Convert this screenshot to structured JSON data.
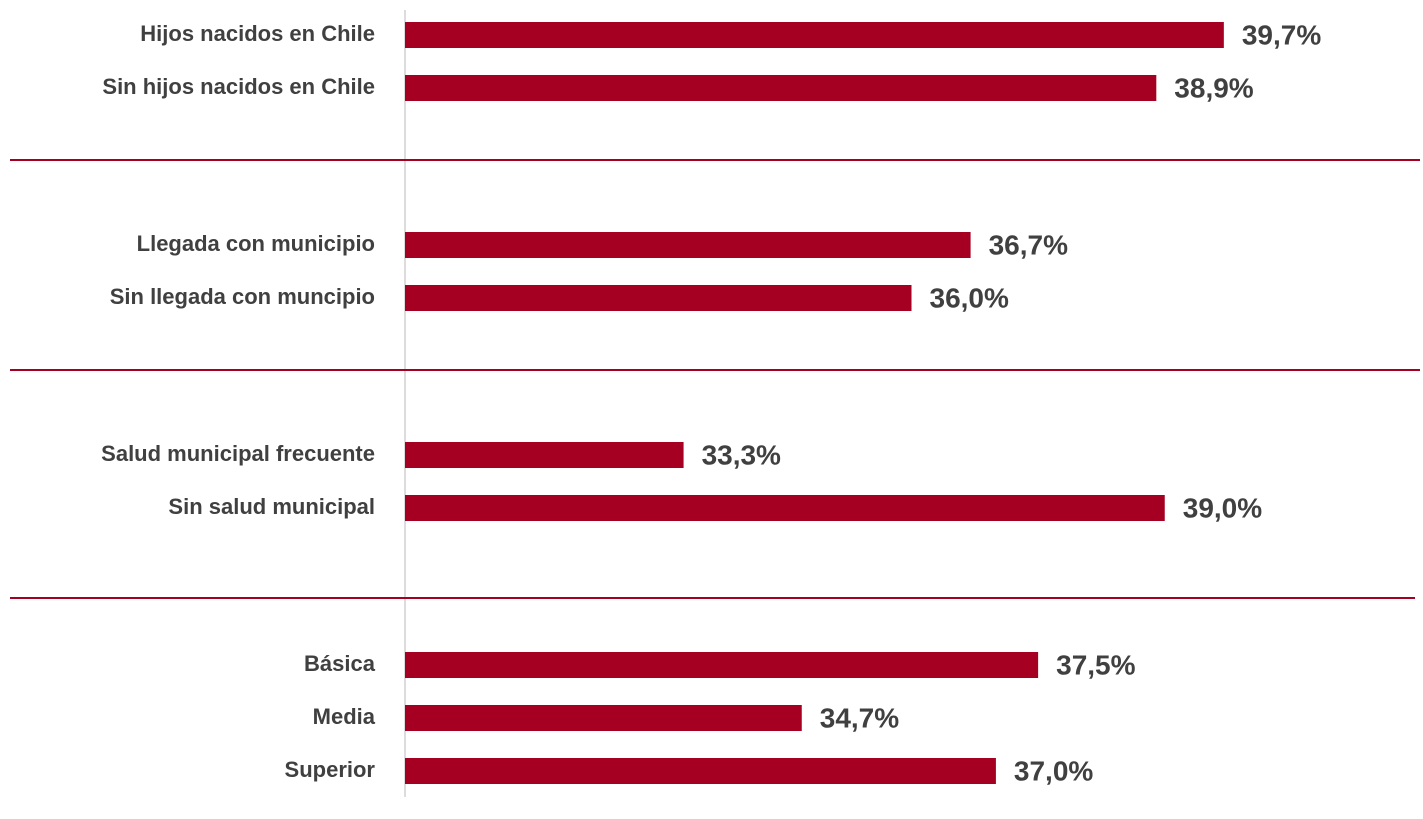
{
  "chart_data": [
    {
      "type": "barh",
      "categories": [
        "Hijos nacidos en Chile",
        "Sin hijos nacidos en Chile"
      ],
      "values": [
        39.7,
        38.9
      ],
      "value_labels": [
        "39,7%",
        "38,9%"
      ],
      "color": "#a50021",
      "xlim": [
        30,
        42
      ]
    },
    {
      "type": "barh",
      "categories": [
        "Llegada con municipio",
        "Sin llegada con muncipio"
      ],
      "values": [
        36.7,
        36.0
      ],
      "value_labels": [
        "36,7%",
        "36,0%"
      ],
      "color": "#a50021",
      "xlim": [
        30,
        42
      ]
    },
    {
      "type": "barh",
      "categories": [
        "Salud municipal frecuente",
        "Sin salud municipal"
      ],
      "values": [
        33.3,
        39.0
      ],
      "value_labels": [
        "33,3%",
        "39,0%"
      ],
      "color": "#a50021",
      "xlim": [
        30,
        42
      ]
    },
    {
      "type": "barh",
      "categories": [
        "Básica",
        "Media",
        "Superior"
      ],
      "values": [
        37.5,
        34.7,
        37.0
      ],
      "value_labels": [
        "37,5%",
        "34,7%",
        "37,0%"
      ],
      "color": "#a50021",
      "xlim": [
        30,
        42
      ]
    }
  ]
}
